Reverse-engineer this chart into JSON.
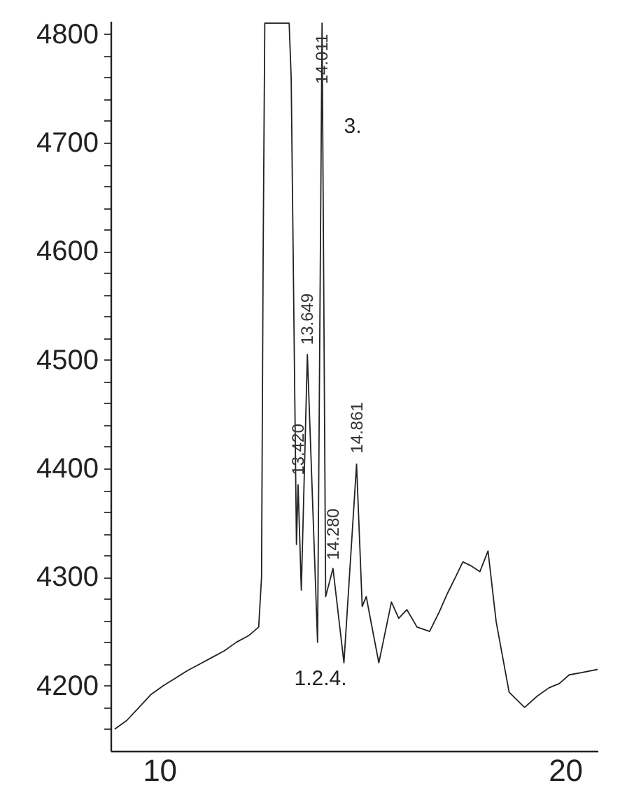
{
  "chart_data": {
    "type": "line",
    "x": [
      8.9,
      9.2,
      9.5,
      9.8,
      10.1,
      10.4,
      10.7,
      11.0,
      11.3,
      11.6,
      11.9,
      12.2,
      12.45,
      12.52,
      12.56,
      12.6,
      13.2,
      13.25,
      13.38,
      13.42,
      13.5,
      13.649,
      13.9,
      14.011,
      14.1,
      14.28,
      14.55,
      14.861,
      15.0,
      15.1,
      15.2,
      15.41,
      15.72,
      15.9,
      16.1,
      16.35,
      16.66,
      16.9,
      17.1,
      17.3,
      17.48,
      17.7,
      17.9,
      18.1,
      18.3,
      18.62,
      19.0,
      19.3,
      19.6,
      19.86,
      20.1,
      20.4,
      20.8
    ],
    "series": [
      {
        "color": "#222222",
        "values": [
          4160,
          4168,
          4180,
          4192,
          4200,
          4207,
          4214,
          4220,
          4226,
          4232,
          4240,
          4246,
          4254,
          4300,
          4600,
          4810,
          4810,
          4760,
          4330,
          4385,
          4288,
          4505,
          4240,
          4810,
          4282,
          4308,
          4221,
          4404,
          4273,
          4282,
          4262,
          4221,
          4277,
          4262,
          4270,
          4254,
          4250,
          4268,
          4285,
          4300,
          4314,
          4310,
          4305,
          4324,
          4259,
          4194,
          4180,
          4190,
          4198,
          4202,
          4210,
          4212,
          4215
        ]
      }
    ],
    "xlim": [
      8.8,
      20.8
    ],
    "ylim": [
      4140,
      4812
    ],
    "xticks": [
      10,
      20
    ],
    "yticks": [
      {
        "value": 4160,
        "label": null
      },
      {
        "value": 4180,
        "label": null
      },
      4200,
      {
        "value": 4220,
        "label": null
      },
      {
        "value": 4240,
        "label": null
      },
      {
        "value": 4260,
        "label": null
      },
      {
        "value": 4280,
        "label": null
      },
      4300,
      {
        "value": 4320,
        "label": null
      },
      {
        "value": 4340,
        "label": null
      },
      {
        "value": 4360,
        "label": null
      },
      {
        "value": 4380,
        "label": null
      },
      4400,
      {
        "value": 4420,
        "label": null
      },
      {
        "value": 4440,
        "label": null
      },
      {
        "value": 4460,
        "label": null
      },
      {
        "value": 4480,
        "label": null
      },
      4500,
      {
        "value": 4520,
        "label": null
      },
      {
        "value": 4540,
        "label": null
      },
      {
        "value": 4560,
        "label": null
      },
      {
        "value": 4580,
        "label": null
      },
      4600,
      {
        "value": 4620,
        "label": null
      },
      {
        "value": 4640,
        "label": null
      },
      {
        "value": 4660,
        "label": null
      },
      {
        "value": 4680,
        "label": null
      },
      4700,
      {
        "value": 4720,
        "label": null
      },
      {
        "value": 4740,
        "label": null
      },
      {
        "value": 4760,
        "label": null
      },
      {
        "value": 4780,
        "label": null
      },
      4800
    ],
    "annotations": [
      {
        "text": "14.011",
        "x": 14.011,
        "y": 4750
      },
      {
        "text": "13.649",
        "x": 13.649,
        "y": 4510
      },
      {
        "text": "13.420",
        "x": 13.42,
        "y": 4390
      },
      {
        "text": "14.280",
        "x": 14.28,
        "y": 4312
      },
      {
        "text": "14.861",
        "x": 14.861,
        "y": 4410
      },
      "3.",
      "1.2.4."
    ],
    "grid": false
  }
}
